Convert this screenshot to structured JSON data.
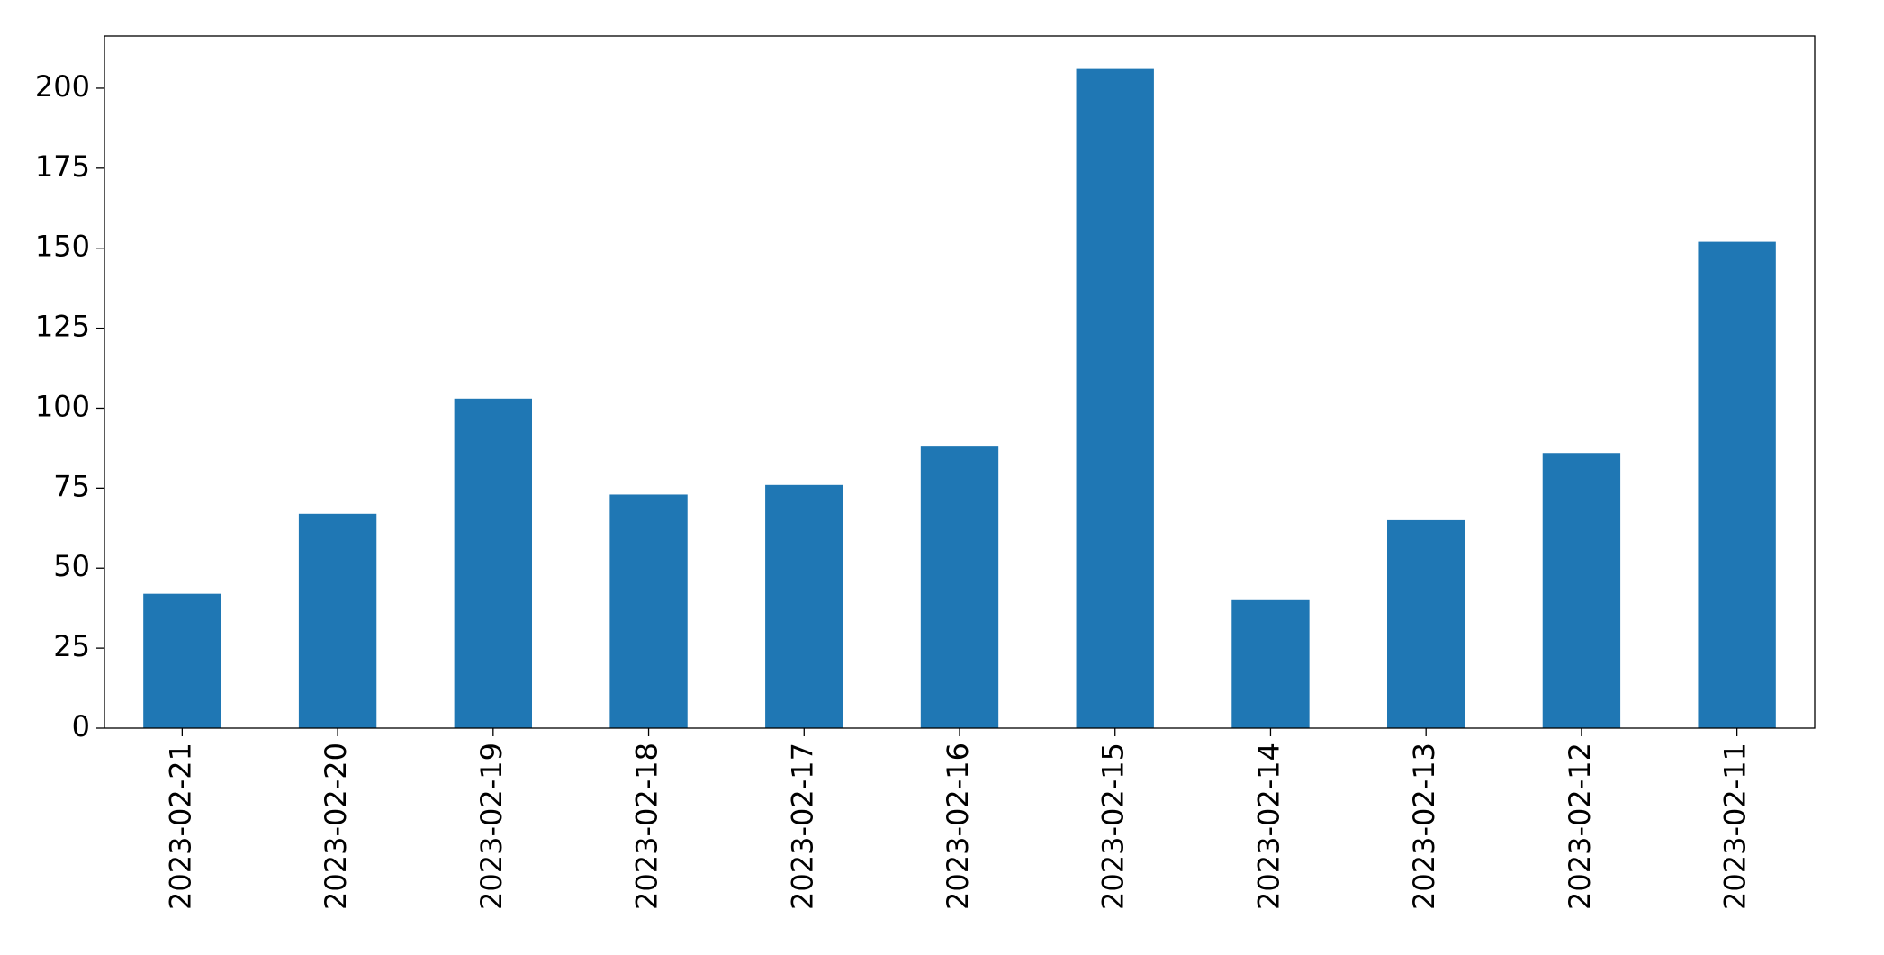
{
  "chart_data": {
    "type": "bar",
    "categories": [
      "2023-02-21",
      "2023-02-20",
      "2023-02-19",
      "2023-02-18",
      "2023-02-17",
      "2023-02-16",
      "2023-02-15",
      "2023-02-14",
      "2023-02-13",
      "2023-02-12",
      "2023-02-11"
    ],
    "values": [
      42,
      67,
      103,
      73,
      76,
      88,
      206,
      40,
      65,
      86,
      152
    ],
    "color": "#1f77b4",
    "ylim": [
      0,
      216.3
    ],
    "yticks": [
      0,
      25,
      50,
      75,
      100,
      125,
      150,
      175,
      200
    ],
    "grid": false
  }
}
